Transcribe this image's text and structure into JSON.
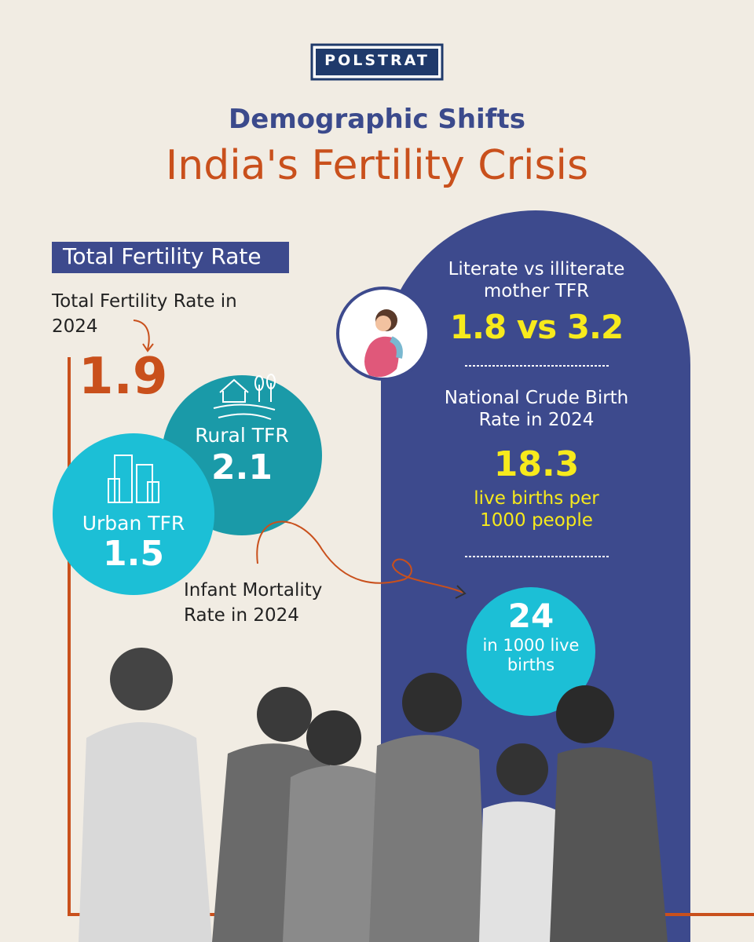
{
  "logo": "POLSTRAT",
  "header": {
    "title": "Demographic Shifts",
    "subtitle": "India's Fertility Crisis"
  },
  "tfr": {
    "section_label": "Total Fertility Rate",
    "label": "Total Fertility Rate in 2024",
    "value": 1.9,
    "rural": {
      "label": "Rural TFR",
      "value": 2.1
    },
    "urban": {
      "label": "Urban TFR",
      "value": 1.5
    }
  },
  "infant_mortality": {
    "label": "Infant Mortality Rate in 2024",
    "value": 24,
    "unit": "in 1000 live births"
  },
  "literacy": {
    "label": "Literate vs illiterate mother TFR",
    "value": "1.8 vs 3.2"
  },
  "crude_birth_rate": {
    "label": "National Crude Birth Rate in 2024",
    "value": 18.3,
    "unit": "live births per 1000 people"
  }
}
